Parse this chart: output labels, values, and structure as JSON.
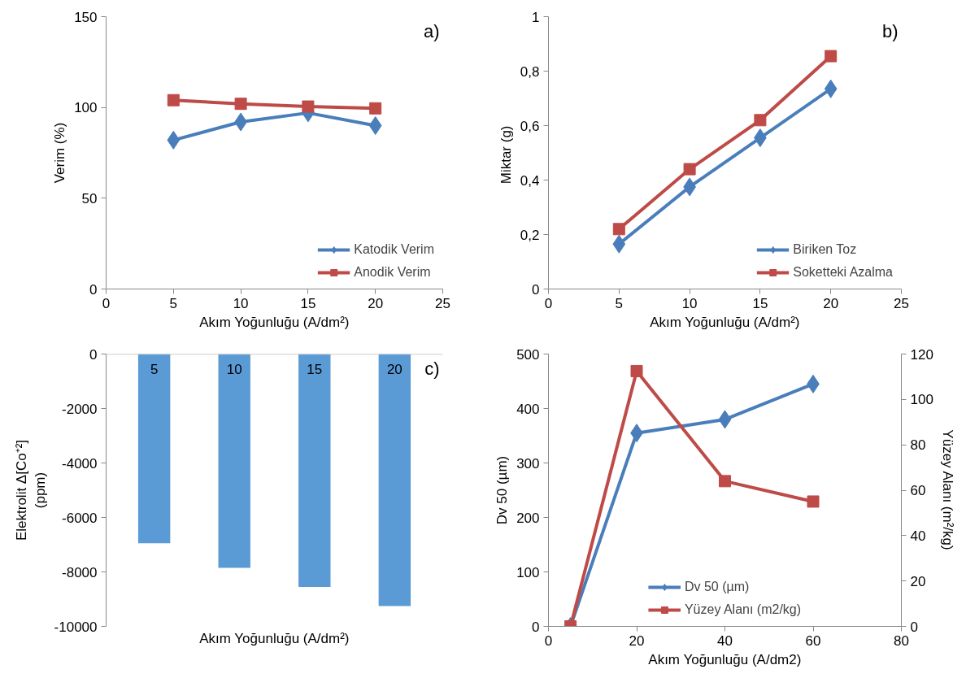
{
  "chart_data": [
    {
      "type": "line",
      "xlabel": "Akım Yoğunluğu (A/dm²)",
      "ylabel": "Verim (%)",
      "annotations": [
        "a)"
      ],
      "x": [
        5,
        10,
        15,
        20
      ],
      "series": [
        {
          "name": "Katodik Verim",
          "color": "#4a7ebb",
          "marker": "diamond",
          "values": [
            82,
            92,
            97,
            90
          ]
        },
        {
          "name": "Anodik Verim",
          "color": "#be4b48",
          "marker": "square",
          "values": [
            104,
            102,
            100.5,
            99.5
          ]
        }
      ],
      "xlim": [
        0,
        25
      ],
      "xticks": [
        0,
        5,
        10,
        15,
        20,
        25
      ],
      "ylim": [
        0,
        150
      ],
      "yticks": [
        0,
        50,
        100,
        150
      ],
      "grid": false,
      "legend": "bottom right"
    },
    {
      "type": "line",
      "xlabel": "Akım Yoğunluğu (A/dm²)",
      "ylabel": "Miktar  (g)",
      "annotations": [
        "b)"
      ],
      "x": [
        5,
        10,
        15,
        20
      ],
      "series": [
        {
          "name": "Biriken Toz",
          "color": "#4a7ebb",
          "marker": "diamond",
          "values": [
            0.165,
            0.375,
            0.555,
            0.735
          ]
        },
        {
          "name": "Soketteki Azalma",
          "color": "#be4b48",
          "marker": "square",
          "values": [
            0.22,
            0.44,
            0.62,
            0.855
          ]
        }
      ],
      "xlim": [
        0,
        25
      ],
      "xticks": [
        0,
        5,
        10,
        15,
        20,
        25
      ],
      "ylim": [
        0,
        1
      ],
      "yticks": [
        0,
        {
          "value": 0.2,
          "label": "0,2"
        },
        {
          "value": 0.4,
          "label": "0,4"
        },
        {
          "value": 0.6,
          "label": "0,6"
        },
        {
          "value": 0.8,
          "label": "0,8"
        },
        1
      ],
      "grid": false,
      "legend": "bottom right"
    },
    {
      "type": "bar",
      "xlabel": "Akım Yoğunluğu (A/dm²)",
      "ylabel": "Elektrolit Δ[Co⁺²]\n(ppm)",
      "annotations": [
        "c)"
      ],
      "categories": [
        "5",
        "10",
        "15",
        "20"
      ],
      "values": [
        -6950,
        -7850,
        -8550,
        -9250
      ],
      "color": "#5b9bd5",
      "ylim": [
        -10000,
        0
      ],
      "yticks": [
        0,
        -2000,
        -4000,
        -6000,
        -8000,
        -10000
      ],
      "grid": false
    },
    {
      "type": "line",
      "xlabel": "Akım Yoğunluğu (A/dm2)",
      "ylabel": "Dv 50 (µm)",
      "y2label": "Yüzey Alanı (m²/kg)",
      "x": [
        5,
        20,
        40,
        60
      ],
      "series": [
        {
          "name": "Dv 50 (µm)",
          "color": "#4a7ebb",
          "marker": "diamond",
          "values": [
            0,
            355,
            380,
            445
          ]
        },
        {
          "name": "Yüzey Alanı (m2/kg)",
          "color": "#be4b48",
          "marker": "square",
          "axis": "y2",
          "values": [
            0,
            112.5,
            64,
            55
          ]
        }
      ],
      "xlim": [
        0,
        80
      ],
      "xticks": [
        0,
        20,
        40,
        60,
        80
      ],
      "ylim": [
        0,
        500
      ],
      "yticks": [
        0,
        100,
        200,
        300,
        400,
        500
      ],
      "y2lim": [
        0,
        120
      ],
      "y2ticks": [
        0,
        20,
        40,
        60,
        80,
        100,
        120
      ],
      "grid": false,
      "legend": "bottom"
    }
  ]
}
